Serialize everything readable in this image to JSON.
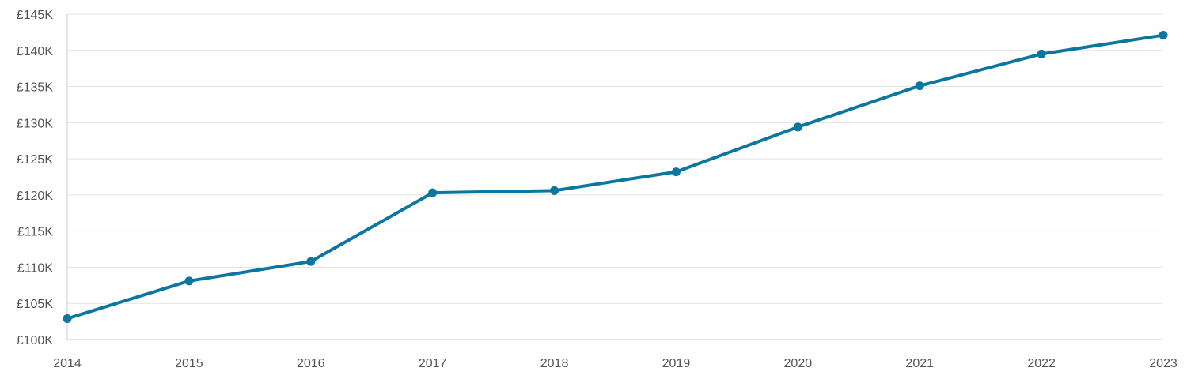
{
  "chart_data": {
    "type": "line",
    "title": "",
    "xlabel": "",
    "ylabel": "",
    "grid": true,
    "legend": "none",
    "x": [
      "2014",
      "2015",
      "2016",
      "2017",
      "2018",
      "2019",
      "2020",
      "2021",
      "2022",
      "2023"
    ],
    "series": [
      {
        "values": [
          102900,
          108100,
          110800,
          120300,
          120600,
          123200,
          129400,
          135100,
          139500,
          142100
        ],
        "color": "#0b77a0"
      }
    ],
    "ylim": [
      100000,
      145000
    ],
    "y_ticks": [
      {
        "value": 100000,
        "label": "£100K"
      },
      {
        "value": 105000,
        "label": "£105K"
      },
      {
        "value": 110000,
        "label": "£110K"
      },
      {
        "value": 115000,
        "label": "£115K"
      },
      {
        "value": 120000,
        "label": "£120K"
      },
      {
        "value": 125000,
        "label": "£125K"
      },
      {
        "value": 130000,
        "label": "£130K"
      },
      {
        "value": 135000,
        "label": "£135K"
      },
      {
        "value": 140000,
        "label": "£140K"
      },
      {
        "value": 145000,
        "label": "£145K"
      }
    ]
  }
}
